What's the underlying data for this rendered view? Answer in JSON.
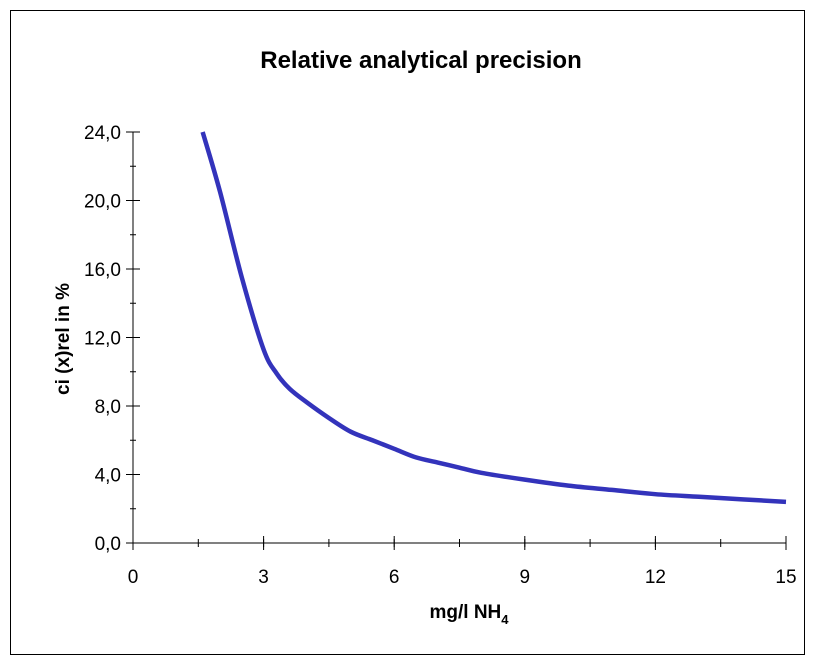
{
  "chart_data": {
    "type": "line",
    "title": "Relative analytical precision",
    "xlabel": {
      "main": "mg/l NH",
      "subscript": "4"
    },
    "ylabel": "ci (x)rel in %",
    "xlim": [
      0,
      15
    ],
    "ylim": [
      0,
      24
    ],
    "x_ticks": [
      0,
      3,
      6,
      9,
      12,
      15
    ],
    "x_tick_labels": [
      "0",
      "3",
      "6",
      "9",
      "12",
      "15"
    ],
    "x_minor_step": 1.5,
    "y_ticks": [
      0,
      4,
      8,
      12,
      16,
      20,
      24
    ],
    "y_tick_labels": [
      "0,0",
      "4,0",
      "8,0",
      "12,0",
      "16,0",
      "20,0",
      "24,0"
    ],
    "y_minor_step": 2,
    "grid": false,
    "legend": "none",
    "series": [
      {
        "color": "#3333bb",
        "x": [
          1.6,
          2.0,
          2.5,
          3.0,
          3.3,
          3.6,
          4.0,
          4.5,
          5.0,
          5.5,
          6.0,
          6.5,
          7.0,
          7.5,
          8.0,
          9.0,
          10.0,
          11.0,
          12.0,
          13.0,
          14.0,
          15.0
        ],
        "y": [
          24.0,
          20.5,
          15.5,
          11.3,
          9.9,
          9.0,
          8.2,
          7.3,
          6.5,
          6.0,
          5.5,
          5.0,
          4.7,
          4.4,
          4.1,
          3.7,
          3.35,
          3.1,
          2.85,
          2.7,
          2.55,
          2.4
        ]
      }
    ]
  }
}
